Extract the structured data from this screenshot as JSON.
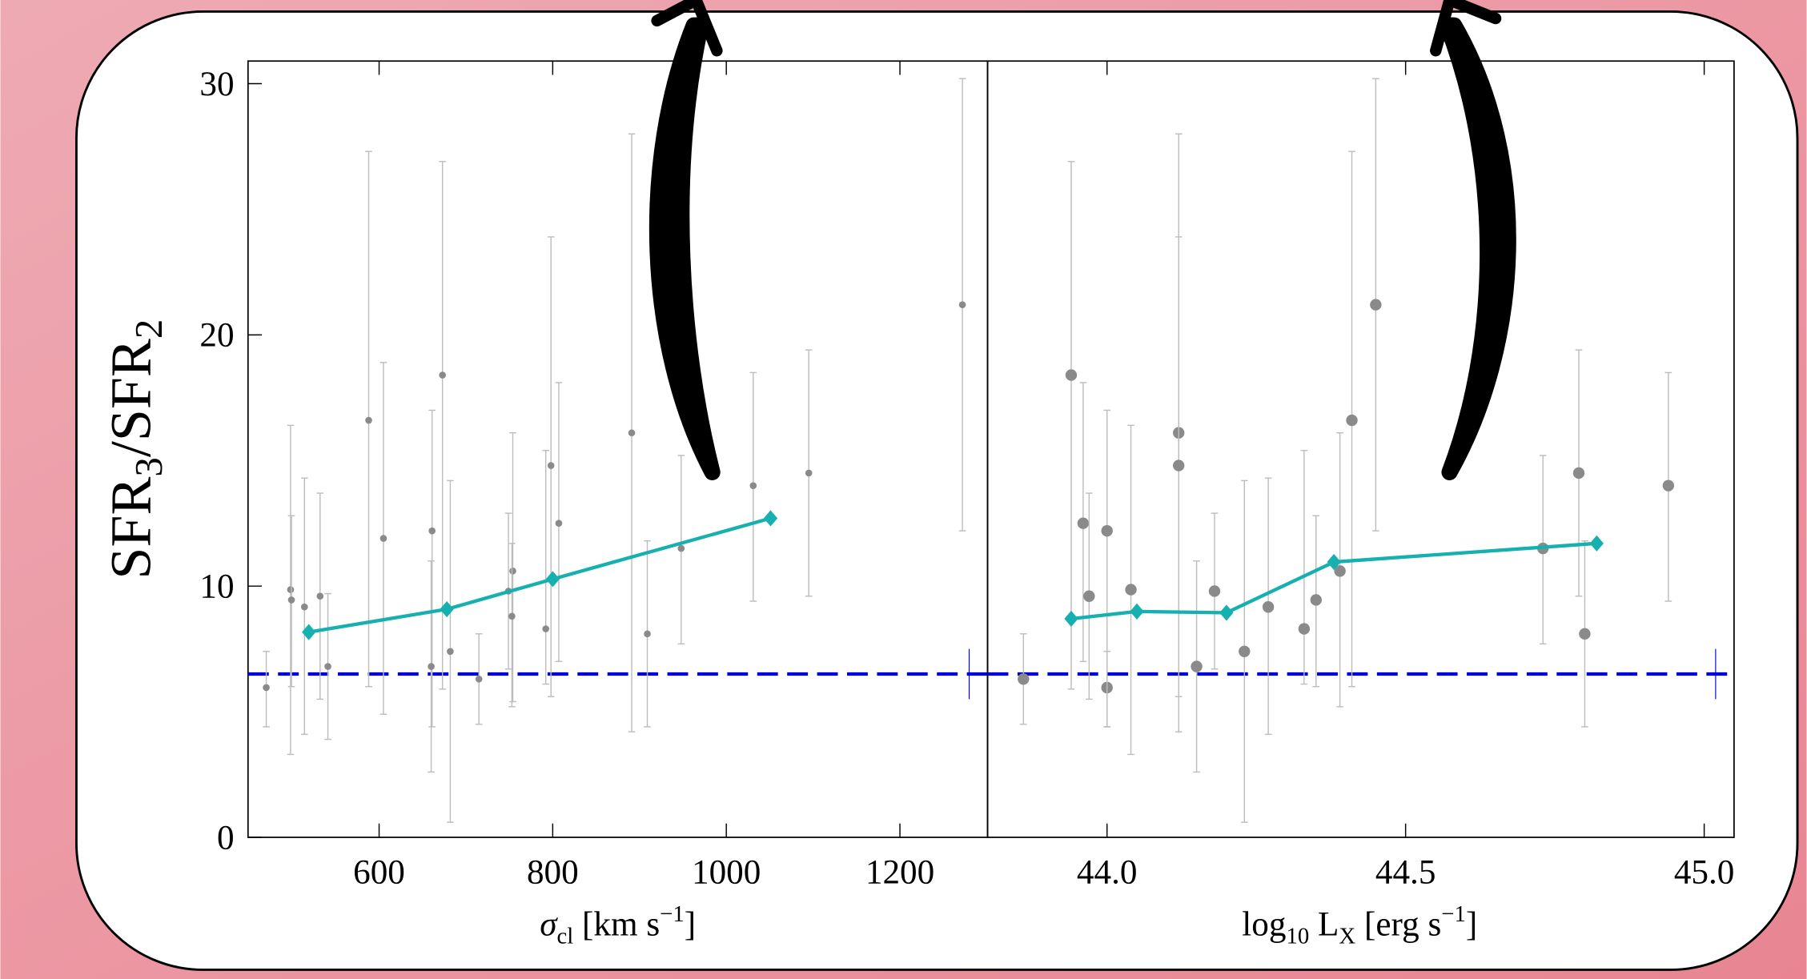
{
  "chart_data": [
    {
      "type": "scatter",
      "xlabel": [
        "σ",
        "cl",
        " [km s",
        "−1",
        "]"
      ],
      "ylabel": [
        "SFR",
        "3",
        "/SFR",
        "2"
      ],
      "xlim": [
        449,
        1301
      ],
      "ylim": [
        0,
        30.9
      ],
      "xticks": [
        600,
        800,
        1000,
        1200
      ],
      "yticks": [
        0,
        10,
        20,
        30
      ],
      "x": [
        470,
        498,
        499,
        514,
        532,
        541,
        588,
        605,
        661,
        660,
        673,
        682,
        715,
        749,
        754,
        753,
        792,
        798,
        807,
        891,
        909,
        948,
        1031,
        1095,
        1272
      ],
      "y": [
        5.96,
        9.86,
        9.45,
        9.17,
        9.6,
        6.8,
        16.6,
        11.9,
        12.2,
        6.8,
        18.4,
        7.4,
        6.3,
        9.8,
        10.6,
        8.8,
        8.3,
        14.8,
        12.5,
        16.1,
        8.1,
        11.5,
        14.0,
        14.5,
        21.2
      ],
      "y_low": [
        4.4,
        3.3,
        6.0,
        4.1,
        5.5,
        3.9,
        6.0,
        4.9,
        4.4,
        2.6,
        5.9,
        0.6,
        4.5,
        6.7,
        5.4,
        5.2,
        6.1,
        5.6,
        7.0,
        4.2,
        4.4,
        7.7,
        9.4,
        9.6,
        12.2
      ],
      "y_high": [
        7.4,
        16.4,
        12.8,
        14.3,
        13.7,
        9.7,
        27.3,
        18.9,
        17.0,
        11.0,
        26.9,
        14.2,
        8.1,
        12.9,
        16.1,
        11.7,
        15.4,
        23.9,
        18.1,
        28.0,
        11.8,
        15.2,
        18.5,
        19.4,
        30.2
      ],
      "point_color": "#8a8a8a",
      "error_color": "#bdbdbd",
      "series": [
        {
          "x": [
            519,
            678,
            800,
            1051
          ],
          "values": [
            8.17,
            9.08,
            10.28,
            12.7
          ],
          "color": "#17b0b0"
        }
      ],
      "hline": {
        "value": 6.5,
        "err": 1.0,
        "color": "#0000dd"
      }
    },
    {
      "type": "scatter",
      "xlabel": [
        "log",
        "10",
        " L",
        "X",
        " [erg s",
        "−1",
        "]"
      ],
      "xlim": [
        43.8,
        45.05
      ],
      "ylim": [
        0,
        30.9
      ],
      "xticks": [
        {
          "value": 44.0,
          "label": "44.0"
        },
        {
          "value": 44.5,
          "label": "44.5"
        },
        {
          "value": 45.0,
          "label": "45.0"
        }
      ],
      "x": [
        43.86,
        43.94,
        43.96,
        43.97,
        44.0,
        44.0,
        44.04,
        44.12,
        44.12,
        44.15,
        44.18,
        44.23,
        44.27,
        44.33,
        44.35,
        44.39,
        44.41,
        44.45,
        44.73,
        44.79,
        44.8,
        44.94
      ],
      "y": [
        6.3,
        18.4,
        12.5,
        9.6,
        5.96,
        12.2,
        9.86,
        16.1,
        14.8,
        6.8,
        9.8,
        7.4,
        9.17,
        8.3,
        9.45,
        10.6,
        16.6,
        21.2,
        11.5,
        14.5,
        8.1,
        14.0
      ],
      "y_low": [
        4.5,
        5.9,
        7.0,
        5.5,
        4.4,
        4.4,
        3.3,
        4.2,
        5.6,
        2.6,
        6.7,
        0.6,
        4.1,
        6.1,
        6.0,
        5.2,
        6.0,
        12.2,
        7.7,
        9.6,
        4.4,
        9.4
      ],
      "y_high": [
        8.1,
        26.9,
        18.1,
        13.7,
        7.4,
        17.0,
        16.4,
        28.0,
        23.9,
        11.0,
        12.9,
        14.2,
        14.3,
        15.4,
        12.8,
        16.1,
        27.3,
        30.2,
        15.2,
        19.4,
        11.8,
        18.5
      ],
      "point_color": "#8a8a8a",
      "error_color": "#bdbdbd",
      "series": [
        {
          "x": [
            43.94,
            44.05,
            44.2,
            44.38,
            44.82
          ],
          "values": [
            8.7,
            8.99,
            8.94,
            10.96,
            11.7
          ],
          "color": "#17b0b0"
        }
      ],
      "hline": {
        "value": 6.5,
        "err": 1.0,
        "color": "#0000dd"
      }
    }
  ]
}
